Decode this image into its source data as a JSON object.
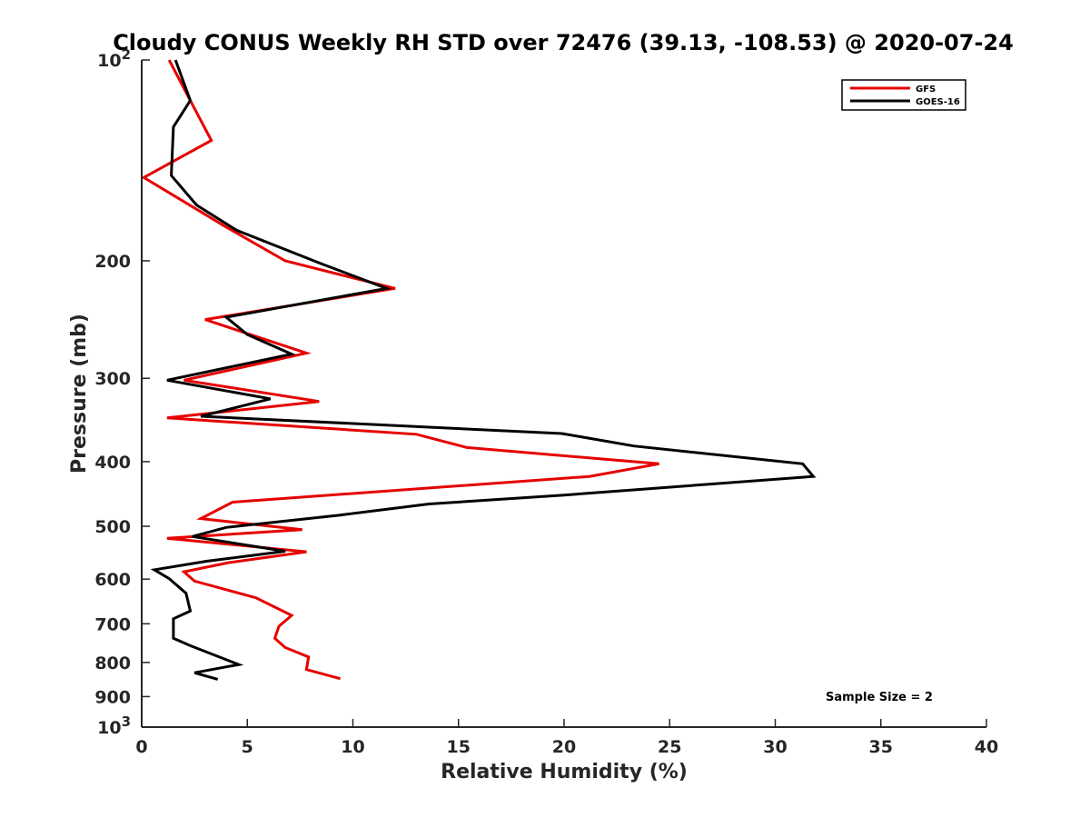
{
  "chart_data": {
    "type": "line",
    "title": "Cloudy CONUS Weekly RH STD over 72476 (39.13, -108.53) @ 2020-07-24",
    "xlabel": "Relative Humidity (%)",
    "ylabel": "Pressure (mb)",
    "xlim": [
      0,
      40
    ],
    "ylim": [
      100,
      1000
    ],
    "y_scale": "log",
    "y_reversed": true,
    "x_ticks": [
      0,
      5,
      10,
      15,
      20,
      25,
      30,
      35,
      40
    ],
    "x_tick_labels": [
      "0",
      "5",
      "10",
      "15",
      "20",
      "25",
      "30",
      "35",
      "40"
    ],
    "y_ticks": [
      100,
      200,
      300,
      400,
      500,
      600,
      700,
      800,
      900,
      1000
    ],
    "y_tick_labels": [
      {
        "base": "10",
        "exp": "2"
      },
      {
        "base": "200",
        "exp": ""
      },
      {
        "base": "300",
        "exp": ""
      },
      {
        "base": "400",
        "exp": ""
      },
      {
        "base": "500",
        "exp": ""
      },
      {
        "base": "600",
        "exp": ""
      },
      {
        "base": "700",
        "exp": ""
      },
      {
        "base": "800",
        "exp": ""
      },
      {
        "base": "900",
        "exp": ""
      },
      {
        "base": "10",
        "exp": "3"
      }
    ],
    "legend_position": "top-right",
    "annotation": "Sample Size = 2",
    "series": [
      {
        "name": "GFS",
        "color": "#e60000",
        "points": [
          [
            1.3,
            100
          ],
          [
            2.3,
            115
          ],
          [
            3.3,
            132
          ],
          [
            0.1,
            150
          ],
          [
            4.0,
            178
          ],
          [
            6.8,
            200
          ],
          [
            12.0,
            220
          ],
          [
            3.0,
            245
          ],
          [
            7.8,
            275
          ],
          [
            2.0,
            302
          ],
          [
            8.4,
            325
          ],
          [
            1.2,
            344
          ],
          [
            13.0,
            364
          ],
          [
            15.4,
            381
          ],
          [
            24.5,
            403
          ],
          [
            21.2,
            421
          ],
          [
            4.3,
            460
          ],
          [
            2.8,
            487
          ],
          [
            7.6,
            506
          ],
          [
            1.2,
            521
          ],
          [
            7.8,
            546
          ],
          [
            4.1,
            567
          ],
          [
            2.0,
            585
          ],
          [
            2.5,
            604
          ],
          [
            5.4,
            640
          ],
          [
            7.1,
            680
          ],
          [
            6.5,
            706
          ],
          [
            6.3,
            736
          ],
          [
            6.8,
            760
          ],
          [
            7.9,
            785
          ],
          [
            7.8,
            820
          ],
          [
            9.4,
            846
          ]
        ]
      },
      {
        "name": "GOES-16",
        "color": "#000000",
        "points": [
          [
            1.6,
            100
          ],
          [
            2.3,
            115
          ],
          [
            1.5,
            126
          ],
          [
            1.4,
            149
          ],
          [
            2.6,
            165
          ],
          [
            4.5,
            180
          ],
          [
            8.5,
            202
          ],
          [
            11.6,
            220
          ],
          [
            4.0,
            243
          ],
          [
            5.0,
            258
          ],
          [
            7.1,
            276
          ],
          [
            1.2,
            302
          ],
          [
            6.1,
            322
          ],
          [
            4.6,
            331
          ],
          [
            2.8,
            342
          ],
          [
            19.9,
            363
          ],
          [
            23.3,
            379
          ],
          [
            31.3,
            403
          ],
          [
            31.8,
            421
          ],
          [
            20.0,
            449
          ],
          [
            13.6,
            463
          ],
          [
            9.4,
            481
          ],
          [
            4.0,
            502
          ],
          [
            2.4,
            518
          ],
          [
            6.8,
            545
          ],
          [
            3.1,
            564
          ],
          [
            0.6,
            581
          ],
          [
            1.3,
            599
          ],
          [
            2.1,
            630
          ],
          [
            2.3,
            670
          ],
          [
            1.5,
            688
          ],
          [
            1.5,
            736
          ],
          [
            2.3,
            755
          ],
          [
            3.9,
            790
          ],
          [
            4.6,
            806
          ],
          [
            2.5,
            829
          ],
          [
            3.6,
            848
          ]
        ]
      }
    ]
  }
}
